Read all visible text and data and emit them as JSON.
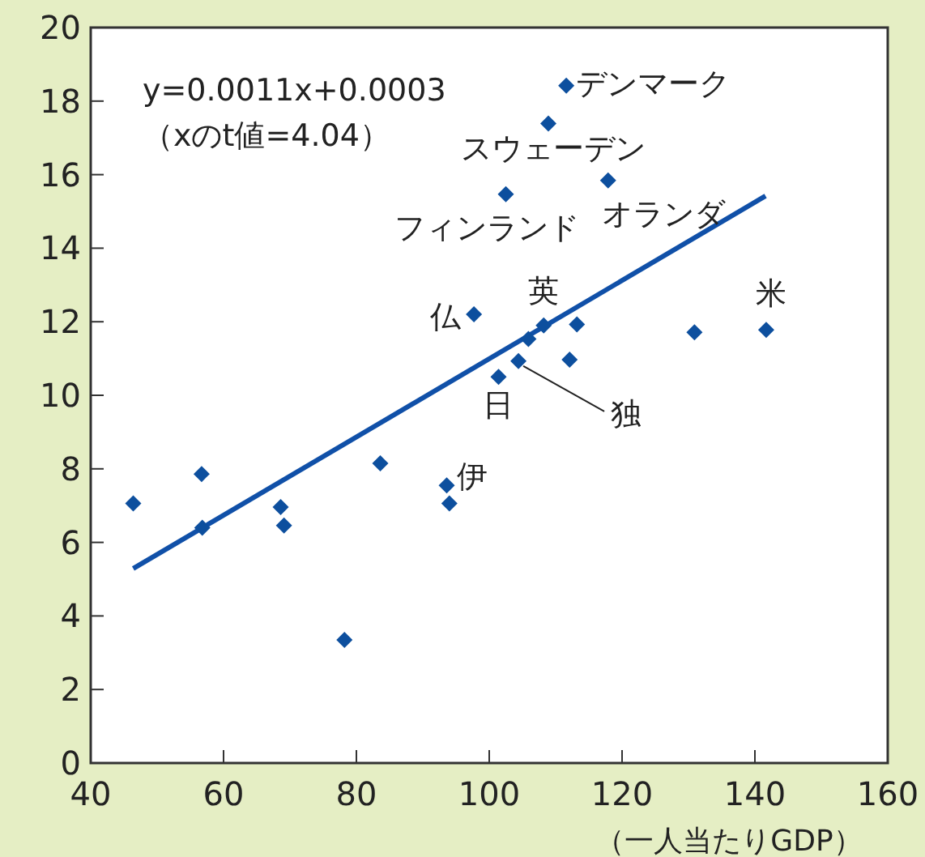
{
  "chart_data": {
    "type": "scatter",
    "xlabel": "（一人当たりGDP）",
    "xlim": [
      40,
      160
    ],
    "xticks": [
      40,
      60,
      80,
      100,
      120,
      140,
      160
    ],
    "ylim": [
      0,
      20
    ],
    "yticks": [
      0,
      2,
      4,
      6,
      8,
      10,
      12,
      14,
      16,
      18,
      20
    ],
    "grid": false,
    "series": [
      {
        "marker": "diamond",
        "color": "#0d4f9e",
        "x": [
          46.4,
          56.7,
          56.8,
          68.6,
          69.1,
          78.2,
          83.6,
          93.6,
          94.0,
          97.7,
          101.4,
          102.5,
          111.6,
          108.9,
          117.9,
          108.2,
          105.9,
          104.4,
          113.2,
          112.1,
          130.9,
          141.7
        ],
        "values": [
          7.06,
          7.86,
          6.4,
          6.96,
          6.46,
          3.35,
          8.15,
          7.55,
          7.06,
          12.2,
          10.5,
          15.47,
          18.42,
          17.39,
          15.84,
          11.9,
          11.53,
          10.93,
          11.93,
          10.97,
          11.71,
          11.78
        ]
      },
      {
        "type": "line",
        "marker": "none",
        "color": "#1050a8",
        "x": [
          46.4,
          141.6
        ],
        "values": [
          5.29,
          15.42
        ]
      }
    ],
    "annotations": [
      "y=0.0011x+0.0003",
      "（xのt値=4.04）",
      {
        "text": "デンマーク",
        "x": 111.6,
        "y": 18.42
      },
      {
        "text": "スウェーデン",
        "x": 108.9,
        "y": 17.39
      },
      {
        "text": "フィンランド",
        "x": 102.5,
        "y": 15.47
      },
      {
        "text": "オランダ",
        "x": 117.9,
        "y": 15.84
      },
      {
        "text": "仏",
        "x": 97.7,
        "y": 12.2
      },
      {
        "text": "英",
        "x": 108.2,
        "y": 11.9
      },
      {
        "text": "日",
        "x": 101.4,
        "y": 10.5
      },
      {
        "text": "独",
        "x": 104.4,
        "y": 10.93
      },
      {
        "text": "伊",
        "x": 93.6,
        "y": 7.55
      },
      {
        "text": "米",
        "x": 141.7,
        "y": 11.78
      }
    ]
  }
}
